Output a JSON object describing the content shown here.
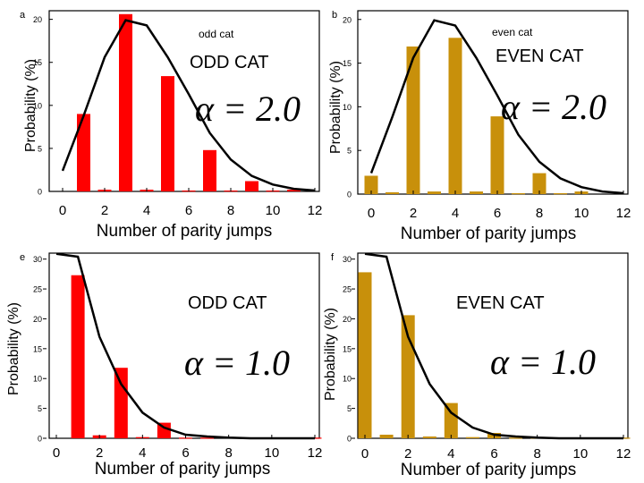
{
  "chart_data": [
    {
      "type": "bar",
      "panel_label": "a",
      "inner_label": "odd cat",
      "caption": "ODD CAT",
      "alpha_text": "α = 2.0",
      "xlabel": "Number of parity jumps",
      "ylabel": "Probability (%)",
      "bar_color": "#ff0000",
      "x": [
        0,
        1,
        2,
        3,
        4,
        5,
        6,
        7,
        8,
        9,
        10,
        11,
        12
      ],
      "bars": [
        0,
        9.0,
        0.2,
        20.6,
        0.2,
        13.4,
        0.1,
        4.8,
        0.1,
        1.2,
        0.1,
        0.2,
        0
      ],
      "curve": [
        2.4,
        8.8,
        15.6,
        19.9,
        19.3,
        15.6,
        11.3,
        6.8,
        3.7,
        1.8,
        0.8,
        0.3,
        0.1
      ],
      "xticks": [
        "0",
        "2",
        "4",
        "6",
        "8",
        "10",
        "12"
      ],
      "yticks": [
        "0",
        "5",
        "10",
        "15",
        "20"
      ],
      "xlim": [
        0,
        12
      ],
      "ylim": [
        0,
        21
      ]
    },
    {
      "type": "bar",
      "panel_label": "b",
      "inner_label": "even cat",
      "caption": "EVEN CAT",
      "alpha_text": "α = 2.0",
      "xlabel": "Number of parity jumps",
      "ylabel": "Probability (%)",
      "bar_color": "#c8900b",
      "x": [
        0,
        1,
        2,
        3,
        4,
        5,
        6,
        7,
        8,
        9,
        10,
        11,
        12
      ],
      "bars": [
        2.1,
        0.2,
        16.9,
        0.3,
        17.9,
        0.3,
        8.9,
        0.1,
        2.4,
        0.1,
        0.3,
        0,
        0
      ],
      "curve": [
        2.4,
        8.8,
        15.6,
        19.9,
        19.3,
        15.6,
        11.3,
        6.8,
        3.7,
        1.8,
        0.8,
        0.3,
        0.1
      ],
      "xticks": [
        "0",
        "2",
        "4",
        "6",
        "8",
        "10",
        "12"
      ],
      "yticks": [
        "0",
        "5",
        "10",
        "15",
        "20"
      ],
      "xlim": [
        0,
        12
      ],
      "ylim": [
        0,
        21
      ]
    },
    {
      "type": "bar",
      "panel_label": "e",
      "caption": "ODD CAT",
      "alpha_text": "α = 1.0",
      "xlabel": "Number of parity jumps",
      "ylabel": "Probability (%)",
      "bar_color": "#ff0000",
      "x": [
        0,
        1,
        2,
        3,
        4,
        5,
        6,
        7,
        8,
        9,
        10,
        11,
        12
      ],
      "bars": [
        0,
        27.3,
        0.5,
        11.8,
        0.2,
        2.6,
        0.1,
        0.1,
        0,
        0,
        0,
        0.1,
        0.1
      ],
      "curve": [
        30.9,
        30.4,
        17.0,
        9.1,
        4.3,
        1.8,
        0.6,
        0.3,
        0.1,
        0,
        0,
        0,
        0
      ],
      "xticks": [
        "0",
        "2",
        "4",
        "6",
        "8",
        "10",
        "12"
      ],
      "yticks": [
        "0",
        "5",
        "10",
        "15",
        "20",
        "25",
        "30"
      ],
      "xlim": [
        0,
        12
      ],
      "ylim": [
        0,
        31
      ]
    },
    {
      "type": "bar",
      "panel_label": "f",
      "caption": "EVEN CAT",
      "alpha_text": "α = 1.0",
      "xlabel": "Number of parity jumps",
      "ylabel": "Probability (%)",
      "bar_color": "#c8900b",
      "x": [
        0,
        1,
        2,
        3,
        4,
        5,
        6,
        7,
        8,
        9,
        10,
        11,
        12
      ],
      "bars": [
        27.8,
        0.6,
        20.6,
        0.3,
        5.9,
        0.2,
        0.9,
        0.1,
        0.1,
        0,
        0,
        0.1,
        0.1
      ],
      "curve": [
        30.9,
        30.4,
        17.0,
        9.1,
        4.3,
        1.8,
        0.6,
        0.3,
        0.1,
        0,
        0,
        0,
        0
      ],
      "xticks": [
        "0",
        "2",
        "4",
        "6",
        "8",
        "10",
        "12"
      ],
      "yticks": [
        "0",
        "5",
        "10",
        "15",
        "20",
        "25",
        "30"
      ],
      "xlim": [
        0,
        12
      ],
      "ylim": [
        0,
        31
      ]
    }
  ]
}
